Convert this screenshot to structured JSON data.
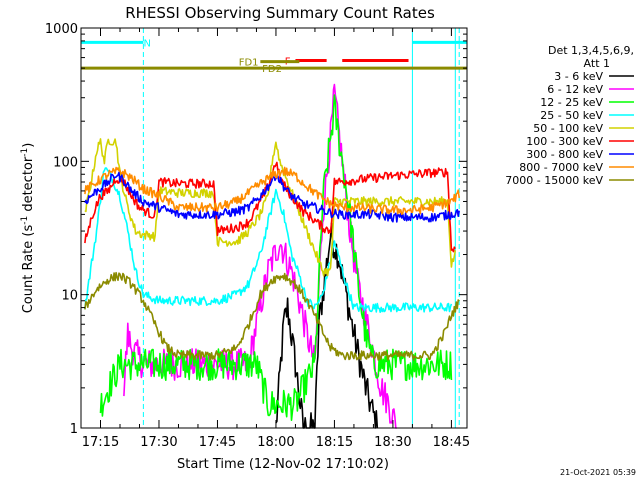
{
  "chart_data": {
    "type": "line",
    "title": "RHESSI Observing Summary Count Rates",
    "xlabel": "Start Time (12-Nov-02 17:10:02)",
    "ylabel": "Count Rate (s⁻¹ detector⁻¹)",
    "ylabel_main": "Count Rate (s",
    "ylabel_sup1": "-1",
    "ylabel_mid": " detector",
    "ylabel_sup2": "-1",
    "ylabel_end": ")",
    "yscale": "log",
    "ylim": [
      1,
      1000
    ],
    "xlim": [
      "17:10",
      "18:49"
    ],
    "x_ticks": [
      "17:15",
      "17:30",
      "17:45",
      "18:00",
      "18:15",
      "18:30",
      "18:45"
    ],
    "y_ticks": [
      "1",
      "10",
      "100",
      "1000"
    ],
    "timestamp": "21-Oct-2021 05:39",
    "legend": {
      "header": [
        "Det 1,3,4,5,6,9,",
        "Att 1"
      ],
      "placement": "right"
    },
    "series": [
      {
        "name": "3 - 6 keV",
        "color": "#000000",
        "points": [
          [
            "18:00",
            1
          ],
          [
            "18:02",
            6
          ],
          [
            "18:03",
            8
          ],
          [
            "18:05",
            3
          ],
          [
            "18:07",
            1
          ],
          [
            "18:10",
            1
          ],
          [
            "18:11",
            6
          ],
          [
            "18:12",
            10
          ],
          [
            "18:14",
            28
          ],
          [
            "18:16",
            20
          ],
          [
            "18:18",
            10
          ],
          [
            "18:20",
            5
          ],
          [
            "18:23",
            2
          ],
          [
            "18:26",
            1
          ]
        ]
      },
      {
        "name": "6 - 12 keV",
        "color": "#ff00ff",
        "points": [
          [
            "17:21",
            2
          ],
          [
            "17:22",
            5
          ],
          [
            "17:23",
            4
          ],
          [
            "17:26",
            3
          ],
          [
            "17:30",
            3
          ],
          [
            "17:35",
            3
          ],
          [
            "17:45",
            3
          ],
          [
            "17:53",
            3
          ],
          [
            "17:55",
            6
          ],
          [
            "17:58",
            15
          ],
          [
            "18:01",
            25
          ],
          [
            "18:04",
            15
          ],
          [
            "18:06",
            9
          ],
          [
            "18:08",
            5
          ],
          [
            "18:10",
            3
          ],
          [
            "18:12",
            40
          ],
          [
            "18:14",
            150
          ],
          [
            "18:15",
            320
          ],
          [
            "18:17",
            100
          ],
          [
            "18:19",
            30
          ],
          [
            "18:21",
            12
          ],
          [
            "18:24",
            5
          ],
          [
            "18:27",
            2
          ],
          [
            "18:29",
            1.5
          ],
          [
            "18:31",
            1
          ]
        ]
      },
      {
        "name": "12 - 25 keV",
        "color": "#00ff00",
        "points": [
          [
            "17:15",
            1.5
          ],
          [
            "17:20",
            3
          ],
          [
            "17:25",
            3
          ],
          [
            "17:30",
            3
          ],
          [
            "17:35",
            3
          ],
          [
            "17:40",
            3
          ],
          [
            "17:45",
            3
          ],
          [
            "17:50",
            3
          ],
          [
            "17:55",
            3
          ],
          [
            "17:58",
            1.5
          ],
          [
            "18:05",
            1.5
          ],
          [
            "18:10",
            3
          ],
          [
            "18:12",
            50
          ],
          [
            "18:14",
            150
          ],
          [
            "18:15",
            250
          ],
          [
            "18:17",
            100
          ],
          [
            "18:19",
            40
          ],
          [
            "18:21",
            12
          ],
          [
            "18:23",
            5
          ],
          [
            "18:25",
            3
          ],
          [
            "18:30",
            3
          ],
          [
            "18:35",
            3
          ],
          [
            "18:40",
            3
          ],
          [
            "18:45",
            3
          ]
        ]
      },
      {
        "name": "25 - 50 keV",
        "color": "#00ffff",
        "points": [
          [
            "17:11",
            8
          ],
          [
            "17:14",
            30
          ],
          [
            "17:16",
            90
          ],
          [
            "17:18",
            75
          ],
          [
            "17:20",
            55
          ],
          [
            "17:22",
            30
          ],
          [
            "17:24",
            15
          ],
          [
            "17:26",
            10
          ],
          [
            "17:30",
            9
          ],
          [
            "17:35",
            9
          ],
          [
            "17:40",
            9
          ],
          [
            "17:45",
            9
          ],
          [
            "17:50",
            10
          ],
          [
            "17:53",
            12
          ],
          [
            "17:56",
            20
          ],
          [
            "17:58",
            35
          ],
          [
            "18:00",
            60
          ],
          [
            "18:02",
            40
          ],
          [
            "18:04",
            20
          ],
          [
            "18:06",
            14
          ],
          [
            "18:08",
            9
          ],
          [
            "18:10",
            8
          ],
          [
            "18:12",
            10
          ],
          [
            "18:15",
            25
          ],
          [
            "18:18",
            12
          ],
          [
            "18:20",
            8
          ],
          [
            "18:25",
            8
          ],
          [
            "18:30",
            8
          ],
          [
            "18:35",
            8
          ],
          [
            "18:40",
            8
          ],
          [
            "18:45",
            8
          ]
        ]
      },
      {
        "name": "50 - 100 keV",
        "color": "#d2d200",
        "points": [
          [
            "17:11",
            40
          ],
          [
            "17:13",
            80
          ],
          [
            "17:14",
            120
          ],
          [
            "17:15",
            140
          ],
          [
            "17:16",
            100
          ],
          [
            "17:17",
            145
          ],
          [
            "17:19",
            140
          ],
          [
            "17:20",
            80
          ],
          [
            "17:22",
            45
          ],
          [
            "17:24",
            30
          ],
          [
            "17:26",
            28
          ],
          [
            "17:28",
            28
          ],
          [
            "17:29",
            27
          ],
          [
            "17:30",
            60
          ],
          [
            "17:35",
            58
          ],
          [
            "17:40",
            58
          ],
          [
            "17:44",
            58
          ],
          [
            "17:45",
            25
          ],
          [
            "17:50",
            25
          ],
          [
            "17:53",
            30
          ],
          [
            "17:56",
            40
          ],
          [
            "17:58",
            55
          ],
          [
            "17:59",
            100
          ],
          [
            "18:00",
            140
          ],
          [
            "18:01",
            100
          ],
          [
            "18:03",
            70
          ],
          [
            "18:05",
            50
          ],
          [
            "18:07",
            35
          ],
          [
            "18:09",
            25
          ],
          [
            "18:12",
            15
          ],
          [
            "18:14",
            15
          ],
          [
            "18:15",
            50
          ],
          [
            "18:20",
            50
          ],
          [
            "18:25",
            50
          ],
          [
            "18:30",
            50
          ],
          [
            "18:35",
            50
          ],
          [
            "18:40",
            50
          ],
          [
            "18:44",
            50
          ],
          [
            "18:45",
            17
          ],
          [
            "18:46",
            20
          ]
        ]
      },
      {
        "name": "100 - 300 keV",
        "color": "#ff0000",
        "points": [
          [
            "17:11",
            25
          ],
          [
            "17:13",
            40
          ],
          [
            "17:15",
            55
          ],
          [
            "17:17",
            60
          ],
          [
            "17:19",
            75
          ],
          [
            "17:21",
            70
          ],
          [
            "17:23",
            55
          ],
          [
            "17:25",
            45
          ],
          [
            "17:28",
            40
          ],
          [
            "17:29",
            40
          ],
          [
            "17:30",
            70
          ],
          [
            "17:35",
            68
          ],
          [
            "17:40",
            68
          ],
          [
            "17:44",
            68
          ],
          [
            "17:45",
            30
          ],
          [
            "17:50",
            32
          ],
          [
            "17:53",
            35
          ],
          [
            "17:56",
            50
          ],
          [
            "17:58",
            65
          ],
          [
            "17:59",
            80
          ],
          [
            "18:00",
            100
          ],
          [
            "18:01",
            75
          ],
          [
            "18:03",
            60
          ],
          [
            "18:05",
            50
          ],
          [
            "18:07",
            42
          ],
          [
            "18:09",
            38
          ],
          [
            "18:12",
            32
          ],
          [
            "18:14",
            30
          ],
          [
            "18:15",
            70
          ],
          [
            "18:20",
            72
          ],
          [
            "18:25",
            75
          ],
          [
            "18:30",
            78
          ],
          [
            "18:35",
            80
          ],
          [
            "18:40",
            82
          ],
          [
            "18:44",
            83
          ],
          [
            "18:45",
            22
          ],
          [
            "18:46",
            22
          ]
        ]
      },
      {
        "name": "300 - 800 keV",
        "color": "#0000ff",
        "points": [
          [
            "17:11",
            50
          ],
          [
            "17:14",
            60
          ],
          [
            "17:17",
            70
          ],
          [
            "17:19",
            80
          ],
          [
            "17:21",
            72
          ],
          [
            "17:23",
            60
          ],
          [
            "17:26",
            50
          ],
          [
            "17:30",
            45
          ],
          [
            "17:35",
            40
          ],
          [
            "17:40",
            40
          ],
          [
            "17:45",
            40
          ],
          [
            "17:50",
            42
          ],
          [
            "17:53",
            45
          ],
          [
            "17:56",
            55
          ],
          [
            "17:58",
            65
          ],
          [
            "18:00",
            80
          ],
          [
            "18:02",
            65
          ],
          [
            "18:04",
            55
          ],
          [
            "18:07",
            48
          ],
          [
            "18:10",
            45
          ],
          [
            "18:13",
            42
          ],
          [
            "18:16",
            40
          ],
          [
            "18:20",
            40
          ],
          [
            "18:25",
            40
          ],
          [
            "18:30",
            38
          ],
          [
            "18:35",
            38
          ],
          [
            "18:40",
            38
          ],
          [
            "18:45",
            40
          ],
          [
            "18:47",
            42
          ]
        ]
      },
      {
        "name": "800 - 7000 keV",
        "color": "#ff8c00",
        "points": [
          [
            "17:11",
            60
          ],
          [
            "17:14",
            70
          ],
          [
            "17:17",
            80
          ],
          [
            "17:20",
            85
          ],
          [
            "17:23",
            75
          ],
          [
            "17:26",
            62
          ],
          [
            "17:30",
            55
          ],
          [
            "17:35",
            45
          ],
          [
            "17:40",
            45
          ],
          [
            "17:45",
            45
          ],
          [
            "17:50",
            50
          ],
          [
            "17:53",
            58
          ],
          [
            "17:56",
            68
          ],
          [
            "17:59",
            78
          ],
          [
            "18:02",
            85
          ],
          [
            "18:05",
            78
          ],
          [
            "18:08",
            65
          ],
          [
            "18:11",
            55
          ],
          [
            "18:14",
            48
          ],
          [
            "18:17",
            45
          ],
          [
            "18:20",
            45
          ],
          [
            "18:25",
            44
          ],
          [
            "18:30",
            43
          ],
          [
            "18:35",
            43
          ],
          [
            "18:40",
            45
          ],
          [
            "18:45",
            50
          ],
          [
            "18:47",
            57
          ]
        ]
      },
      {
        "name": "7000 - 15000 keV",
        "color": "#8b8b00",
        "points": [
          [
            "17:11",
            8
          ],
          [
            "17:14",
            11
          ],
          [
            "17:17",
            13
          ],
          [
            "17:20",
            14
          ],
          [
            "17:23",
            12
          ],
          [
            "17:26",
            9
          ],
          [
            "17:29",
            6
          ],
          [
            "17:32",
            4
          ],
          [
            "17:35",
            3.5
          ],
          [
            "17:40",
            3.5
          ],
          [
            "17:45",
            3.5
          ],
          [
            "17:50",
            4
          ],
          [
            "17:53",
            6
          ],
          [
            "17:56",
            10
          ],
          [
            "17:59",
            13
          ],
          [
            "18:02",
            14
          ],
          [
            "18:05",
            12
          ],
          [
            "18:08",
            9
          ],
          [
            "18:11",
            6
          ],
          [
            "18:14",
            4
          ],
          [
            "18:17",
            3.5
          ],
          [
            "18:20",
            3.5
          ],
          [
            "18:25",
            3.5
          ],
          [
            "18:30",
            3.5
          ],
          [
            "18:35",
            3.5
          ],
          [
            "18:40",
            3.5
          ],
          [
            "18:43",
            5
          ],
          [
            "18:45",
            7
          ],
          [
            "18:47",
            9
          ]
        ]
      }
    ],
    "flags": [
      {
        "label": "N",
        "color": "#00ffff",
        "segments": [
          [
            "17:10",
            "17:26"
          ],
          [
            "18:35",
            "18:49"
          ]
        ],
        "y": 780,
        "label_at": "17:27"
      },
      {
        "label": "F",
        "color": "#ff0000",
        "segments": [
          [
            "18:05",
            "18:13"
          ],
          [
            "18:17",
            "18:34"
          ]
        ],
        "y": 570,
        "label_at": "18:03"
      },
      {
        "label": "FD1",
        "color": "#8b8b00",
        "segments": [
          [
            "17:56",
            "18:06"
          ]
        ],
        "y": 560,
        "label_at": "17:53"
      },
      {
        "label": "FD2",
        "color": "#8b8b00",
        "segments": [
          [
            "17:10",
            "18:49"
          ]
        ],
        "y": 500,
        "label_at": "17:59"
      }
    ],
    "vlines": [
      {
        "x": "17:10",
        "color": "#00ffff",
        "dashed": false
      },
      {
        "x": "17:26",
        "color": "#00ffff",
        "dashed": true
      },
      {
        "x": "18:35",
        "color": "#00ffff",
        "dashed": false
      },
      {
        "x": "18:46",
        "color": "#00ffff",
        "dashed": false
      },
      {
        "x": "18:47",
        "color": "#00ffff",
        "dashed": true
      }
    ]
  }
}
